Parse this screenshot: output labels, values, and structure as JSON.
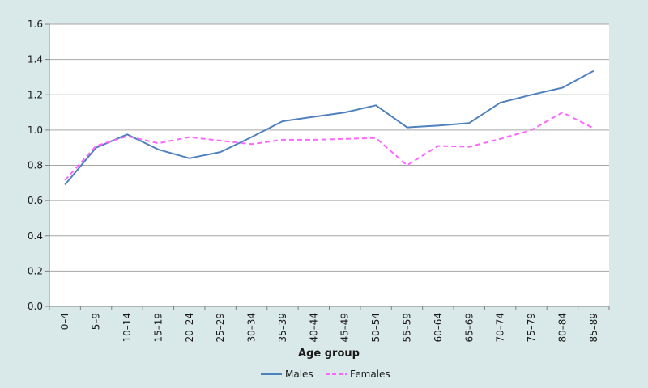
{
  "colors": {
    "background": "#d9e8e8",
    "plot_background": "#ffffff",
    "gridline": "#a6a6a6",
    "males": "#4f81bd",
    "females": "#ff66ff"
  },
  "chart_data": {
    "type": "line",
    "title": "",
    "xlabel": "Age group",
    "ylabel": "",
    "ylim": [
      0,
      1.6
    ],
    "yticks": [
      "0.0",
      "0.2",
      "0.4",
      "0.6",
      "0.8",
      "1.0",
      "1.2",
      "1.4",
      "1.6"
    ],
    "grid": true,
    "legend_position": "bottom",
    "categories": [
      "0–4",
      "5–9",
      "10–14",
      "15–19",
      "20–24",
      "25–29",
      "30–34",
      "35–39",
      "40–44",
      "45–49",
      "50–54",
      "55–59",
      "60–64",
      "65–69",
      "70–74",
      "75–79",
      "80–84",
      "85–89"
    ],
    "series": [
      {
        "name": "Males",
        "style": "solid",
        "values": [
          0.69,
          0.9,
          0.975,
          0.89,
          0.84,
          0.875,
          0.96,
          1.05,
          1.075,
          1.1,
          1.14,
          1.015,
          1.025,
          1.04,
          1.155,
          1.2,
          1.24,
          1.335
        ]
      },
      {
        "name": "Females",
        "style": "dashed",
        "values": [
          0.715,
          0.91,
          0.965,
          0.925,
          0.96,
          0.94,
          0.92,
          0.945,
          0.945,
          0.95,
          0.955,
          0.8,
          0.91,
          0.905,
          0.95,
          1.0,
          1.1,
          1.01
        ]
      }
    ]
  }
}
